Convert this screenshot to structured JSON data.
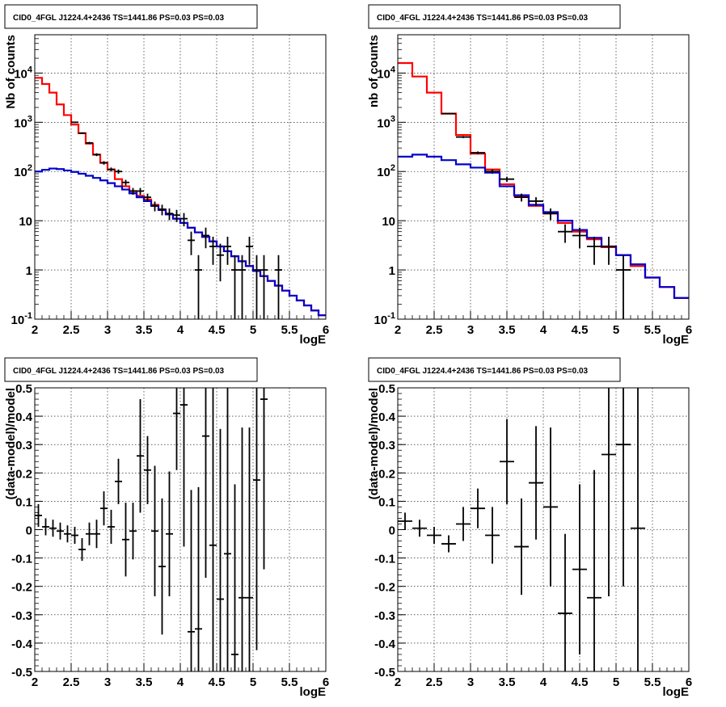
{
  "chart_data": [
    {
      "type": "line",
      "title": "CID0_4FGL J1224.4+2436 TS=1441.86 PS=0.03 PS=0.03",
      "xlabel": "logE",
      "ylabel": "Nb of counts",
      "xlim": [
        2,
        6
      ],
      "ylim": [
        0.1,
        60000
      ],
      "yscale": "log",
      "grid": true,
      "x_ticks": [
        "2",
        "2.5",
        "3",
        "3.5",
        "4",
        "4.5",
        "5",
        "5.5",
        "6"
      ],
      "y_ticks": [
        "10^-1",
        "1",
        "10",
        "10^2",
        "10^3",
        "10^4"
      ],
      "series": [
        {
          "kind": "step",
          "color": "#ff0000",
          "edges": [
            2.0,
            2.1,
            2.2,
            2.3,
            2.4,
            2.5,
            2.6,
            2.7,
            2.8,
            2.9,
            3.0,
            3.1,
            3.2,
            3.3,
            3.4,
            3.5,
            3.6,
            3.7,
            3.8,
            3.9,
            4.0,
            4.1,
            4.2,
            4.3,
            4.4,
            4.5,
            4.6,
            4.7,
            4.8,
            4.9,
            5.0,
            5.1,
            5.2,
            5.3,
            5.4,
            5.5,
            5.6,
            5.7,
            5.8,
            5.9,
            6.0
          ],
          "values": [
            8000,
            6000,
            4000,
            2300,
            1400,
            900,
            600,
            370,
            220,
            150,
            110,
            70,
            50,
            40,
            32,
            27,
            21,
            17,
            13.5,
            11,
            9,
            7.2,
            5.8,
            4.7,
            3.8,
            3.0,
            2.4,
            1.9,
            1.5,
            1.2,
            0.95,
            0.75,
            0.6,
            0.48,
            0.38,
            0.3,
            0.24,
            0.19,
            0.15,
            0.12
          ]
        },
        {
          "kind": "step",
          "color": "#0000cc",
          "edges": [
            2.0,
            2.1,
            2.2,
            2.3,
            2.4,
            2.5,
            2.6,
            2.7,
            2.8,
            2.9,
            3.0,
            3.1,
            3.2,
            3.3,
            3.4,
            3.5,
            3.6,
            3.7,
            3.8,
            3.9,
            4.0,
            4.1,
            4.2,
            4.3,
            4.4,
            4.5,
            4.6,
            4.7,
            4.8,
            4.9,
            5.0,
            5.1,
            5.2,
            5.3,
            5.4,
            5.5,
            5.6,
            5.7,
            5.8,
            5.9,
            6.0
          ],
          "values": [
            100,
            108,
            115,
            112,
            105,
            98,
            90,
            82,
            74,
            66,
            58,
            50,
            43,
            36,
            30,
            25,
            20,
            16.5,
            13.5,
            11,
            9,
            7.2,
            5.8,
            4.7,
            3.8,
            3.0,
            2.4,
            1.9,
            1.5,
            1.2,
            0.95,
            0.75,
            0.6,
            0.48,
            0.38,
            0.3,
            0.24,
            0.19,
            0.15,
            0.12
          ]
        },
        {
          "kind": "errorbar",
          "color": "#000000",
          "x": [
            2.55,
            2.65,
            2.75,
            2.85,
            2.95,
            3.05,
            3.15,
            3.25,
            3.35,
            3.45,
            3.55,
            3.65,
            3.75,
            3.85,
            3.95,
            4.05,
            4.15,
            4.25,
            4.35,
            4.45,
            4.55,
            4.65,
            4.75,
            4.85,
            4.95,
            5.05,
            5.15,
            5.35
          ],
          "y": [
            1000,
            600,
            380,
            220,
            150,
            110,
            100,
            60,
            40,
            40,
            30,
            20,
            17,
            14,
            13,
            11,
            4,
            1,
            5,
            3,
            2,
            3,
            1,
            1,
            3,
            1,
            1,
            1
          ],
          "xerr": 0.05
        }
      ]
    },
    {
      "type": "line",
      "title": "CID0_4FGL J1224.4+2436 TS=1441.86 PS=0.03 PS=0.03",
      "xlabel": "logE",
      "ylabel": "nb of counts",
      "xlim": [
        2,
        6
      ],
      "ylim": [
        0.1,
        60000
      ],
      "yscale": "log",
      "grid": true,
      "x_ticks": [
        "2",
        "2.5",
        "3",
        "3.5",
        "4",
        "4.5",
        "5",
        "5.5",
        "6"
      ],
      "y_ticks": [
        "10^-1",
        "1",
        "10",
        "10^2",
        "10^3",
        "10^4"
      ],
      "series": [
        {
          "kind": "step",
          "color": "#ff0000",
          "edges": [
            2.0,
            2.2,
            2.4,
            2.6,
            2.8,
            3.0,
            3.2,
            3.4,
            3.6,
            3.8,
            4.0,
            4.2,
            4.4,
            4.6,
            4.8,
            5.0,
            5.2,
            5.4,
            5.6,
            5.8,
            6.0
          ],
          "values": [
            16000,
            8500,
            4000,
            1500,
            550,
            230,
            110,
            55,
            32,
            20,
            14,
            9,
            6,
            4.2,
            2.9,
            2.0,
            1.2,
            0.7,
            0.45,
            0.27
          ],
          "note": ""
        },
        {
          "kind": "step",
          "color": "#0000cc",
          "edges": [
            2.0,
            2.2,
            2.4,
            2.6,
            2.8,
            3.0,
            3.2,
            3.4,
            3.6,
            3.8,
            4.0,
            4.2,
            4.4,
            4.6,
            4.8,
            5.0,
            5.2,
            5.4,
            5.6,
            5.8,
            6.0
          ],
          "values": [
            200,
            220,
            200,
            170,
            140,
            120,
            95,
            50,
            33,
            21,
            15,
            10,
            6.5,
            4.5,
            3.0,
            2.0,
            1.3,
            0.7,
            0.45,
            0.27
          ]
        },
        {
          "kind": "errorbar",
          "color": "#000000",
          "x": [
            2.7,
            2.9,
            3.1,
            3.3,
            3.5,
            3.7,
            3.9,
            4.1,
            4.3,
            4.5,
            4.7,
            4.9,
            5.1
          ],
          "y": [
            1500,
            500,
            240,
            100,
            70,
            30,
            25,
            14,
            6,
            5,
            3,
            3,
            1
          ],
          "xerr": 0.1
        }
      ]
    },
    {
      "type": "scatter",
      "title": "CID0_4FGL J1224.4+2436 TS=1441.86 PS=0.03 PS=0.03",
      "xlabel": "logE",
      "ylabel": "(data-model)/model",
      "xlim": [
        2,
        6
      ],
      "ylim": [
        -0.5,
        0.5
      ],
      "grid": true,
      "x_ticks": [
        "2",
        "2.5",
        "3",
        "3.5",
        "4",
        "4.5",
        "5",
        "5.5",
        "6"
      ],
      "y_ticks": [
        "-0.5",
        "-0.4",
        "-0.3",
        "-0.2",
        "-0.1",
        "0",
        "0.1",
        "0.2",
        "0.3",
        "0.4",
        "0.5"
      ],
      "series": [
        {
          "kind": "errorbar",
          "color": "#000000",
          "xerr": 0.05,
          "x": [
            2.05,
            2.15,
            2.25,
            2.35,
            2.45,
            2.55,
            2.65,
            2.75,
            2.85,
            2.95,
            3.05,
            3.15,
            3.25,
            3.35,
            3.45,
            3.55,
            3.65,
            3.75,
            3.85,
            3.95,
            4.05,
            4.15,
            4.25,
            4.35,
            4.45,
            4.55,
            4.65,
            4.75,
            4.85,
            4.95,
            5.05,
            5.15
          ],
          "y": [
            0.05,
            0.01,
            0.005,
            -0.005,
            -0.015,
            -0.02,
            -0.07,
            -0.015,
            -0.015,
            0.075,
            0.01,
            0.17,
            -0.035,
            -0.005,
            0.26,
            0.21,
            -0.005,
            -0.13,
            -0.015,
            0.41,
            0.44,
            -0.36,
            -0.35,
            0.33,
            -0.055,
            -0.245,
            -0.085,
            -0.44,
            -0.24,
            -0.24,
            0.175,
            0.46
          ],
          "yerr": [
            0.04,
            0.03,
            0.03,
            0.03,
            0.03,
            0.03,
            0.04,
            0.04,
            0.05,
            0.06,
            0.06,
            0.08,
            0.13,
            0.1,
            0.2,
            0.12,
            0.23,
            0.24,
            0.22,
            0.2,
            0.5,
            0.5,
            0.5,
            0.5,
            0.6,
            0.6,
            0.6,
            0.6,
            0.6,
            0.6,
            0.6,
            0.6
          ]
        }
      ]
    },
    {
      "type": "scatter",
      "title": "CID0_4FGL J1224.4+2436 TS=1441.86 PS=0.03 PS=0.03",
      "xlabel": "logE",
      "ylabel": "(data-model)/model",
      "xlim": [
        2,
        6
      ],
      "ylim": [
        -0.5,
        0.5
      ],
      "grid": true,
      "x_ticks": [
        "2",
        "2.5",
        "3",
        "3.5",
        "4",
        "4.5",
        "5",
        "5.5",
        "6"
      ],
      "y_ticks": [
        "-0.5",
        "-0.4",
        "-0.3",
        "-0.2",
        "-0.1",
        "0",
        "0.1",
        "0.2",
        "0.3",
        "0.4",
        "0.5"
      ],
      "series": [
        {
          "kind": "errorbar",
          "color": "#000000",
          "xerr": 0.1,
          "x": [
            2.1,
            2.3,
            2.5,
            2.7,
            2.9,
            3.1,
            3.3,
            3.5,
            3.7,
            3.9,
            4.1,
            4.3,
            4.5,
            4.7,
            4.9,
            5.1,
            5.3
          ],
          "y": [
            0.03,
            0.005,
            -0.02,
            -0.05,
            0.02,
            0.075,
            -0.02,
            0.24,
            -0.06,
            0.165,
            0.08,
            -0.295,
            -0.14,
            -0.24,
            0.265,
            0.3,
            0.005
          ],
          "yerr": [
            0.03,
            0.03,
            0.03,
            0.03,
            0.06,
            0.07,
            0.1,
            0.15,
            0.17,
            0.2,
            0.28,
            0.28,
            0.3,
            0.45,
            0.5,
            0.5,
            0.6
          ]
        }
      ]
    }
  ]
}
